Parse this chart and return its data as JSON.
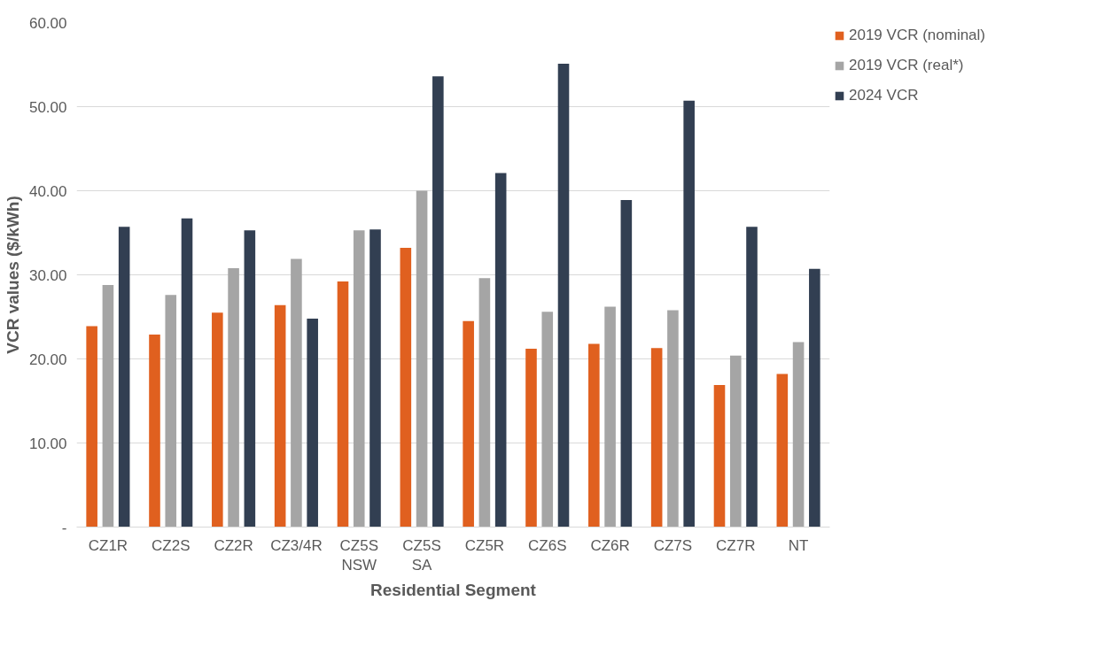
{
  "chart_data": {
    "type": "bar",
    "xlabel": "Residential Segment",
    "ylabel": "VCR values ($/kWh)",
    "categories": [
      "CZ1R",
      "CZ2S",
      "CZ2R",
      "CZ3/4R",
      "CZ5S\nNSW",
      "CZ5S\nSA",
      "CZ5R",
      "CZ6S",
      "CZ6R",
      "CZ7S",
      "CZ7R",
      "NT"
    ],
    "series": [
      {
        "name": "2019 VCR (nominal)",
        "color": "#e0601f",
        "values": [
          23.9,
          22.9,
          25.5,
          26.4,
          29.2,
          33.2,
          24.5,
          21.2,
          21.8,
          21.3,
          16.9,
          18.2
        ]
      },
      {
        "name": "2019 VCR (real*)",
        "color": "#a5a5a5",
        "values": [
          28.8,
          27.6,
          30.8,
          31.9,
          35.3,
          40.0,
          29.6,
          25.6,
          26.2,
          25.8,
          20.4,
          22.0
        ]
      },
      {
        "name": "2024 VCR",
        "color": "#323f52",
        "values": [
          35.7,
          36.7,
          35.3,
          24.8,
          35.4,
          53.6,
          42.1,
          55.1,
          38.9,
          50.7,
          35.7,
          30.7
        ]
      }
    ],
    "ylim": [
      0,
      60
    ],
    "yticks": [
      {
        "value": 0,
        "label": "-"
      },
      {
        "value": 10,
        "label": "10.00"
      },
      {
        "value": 20,
        "label": "20.00"
      },
      {
        "value": 30,
        "label": "30.00"
      },
      {
        "value": 40,
        "label": "40.00"
      },
      {
        "value": 50,
        "label": "50.00"
      },
      {
        "value": 60,
        "label": "60.00"
      }
    ],
    "grid": "y",
    "legend": "top right"
  }
}
